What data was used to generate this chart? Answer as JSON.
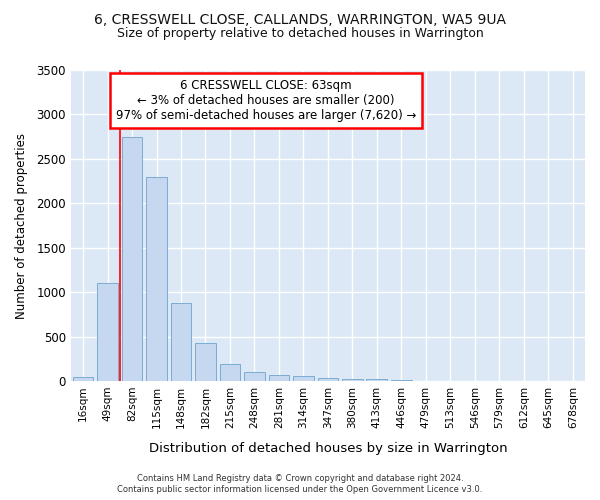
{
  "title1": "6, CRESSWELL CLOSE, CALLANDS, WARRINGTON, WA5 9UA",
  "title2": "Size of property relative to detached houses in Warrington",
  "xlabel": "Distribution of detached houses by size in Warrington",
  "ylabel": "Number of detached properties",
  "bar_color": "#c5d8f0",
  "bar_edge_color": "#7aadd4",
  "bar_categories": [
    "16sqm",
    "49sqm",
    "82sqm",
    "115sqm",
    "148sqm",
    "182sqm",
    "215sqm",
    "248sqm",
    "281sqm",
    "314sqm",
    "347sqm",
    "380sqm",
    "413sqm",
    "446sqm",
    "479sqm",
    "513sqm",
    "546sqm",
    "579sqm",
    "612sqm",
    "645sqm",
    "678sqm"
  ],
  "bar_values": [
    50,
    1100,
    2750,
    2300,
    875,
    430,
    190,
    100,
    70,
    55,
    35,
    25,
    20,
    10,
    5,
    3,
    2,
    1,
    0,
    0,
    0
  ],
  "ylim": [
    0,
    3500
  ],
  "yticks": [
    0,
    500,
    1000,
    1500,
    2000,
    2500,
    3000,
    3500
  ],
  "annotation_text_line1": "6 CRESSWELL CLOSE: 63sqm",
  "annotation_text_line2": "← 3% of detached houses are smaller (200)",
  "annotation_text_line3": "97% of semi-detached houses are larger (7,620) →",
  "red_line_x": 2.0,
  "fig_bg_color": "#ffffff",
  "plot_bg_color": "#dce8f5",
  "grid_color": "#ffffff",
  "footer_line1": "Contains HM Land Registry data © Crown copyright and database right 2024.",
  "footer_line2": "Contains public sector information licensed under the Open Government Licence v3.0."
}
